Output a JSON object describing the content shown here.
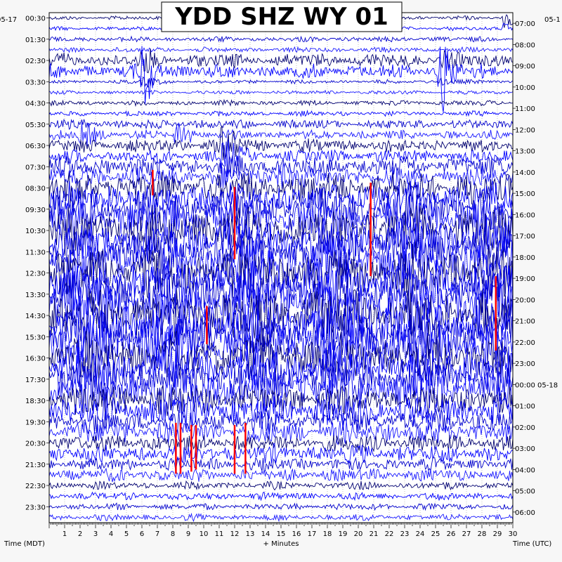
{
  "chart_data": {
    "type": "line",
    "title": "YDD SHZ WY 01",
    "xlabel": "+ Minutes",
    "ylabel_left": "Time (MDT)",
    "ylabel_right": "Time (UTC)",
    "xlim": [
      0,
      30
    ],
    "x_ticks": [
      "1",
      "2",
      "3",
      "4",
      "5",
      "6",
      "7",
      "8",
      "9",
      "10",
      "11",
      "12",
      "13",
      "14",
      "15",
      "16",
      "17",
      "18",
      "19",
      "20",
      "21",
      "22",
      "23",
      "24",
      "25",
      "26",
      "27",
      "28",
      "29",
      "30"
    ],
    "left_date": "05-17",
    "right_date_start": "05-1",
    "right_date_next": "05-18",
    "left_times": [
      "00:30",
      "01:30",
      "02:30",
      "03:30",
      "04:30",
      "05:30",
      "06:30",
      "07:30",
      "08:30",
      "09:30",
      "10:30",
      "11:30",
      "12:30",
      "13:30",
      "14:30",
      "15:30",
      "16:30",
      "17:30",
      "18:30",
      "19:30",
      "20:30",
      "21:30",
      "22:30",
      "23:30"
    ],
    "right_times": [
      "07:00",
      "08:00",
      "09:00",
      "10:00",
      "11:00",
      "12:00",
      "13:00",
      "14:00",
      "15:00",
      "16:00",
      "17:00",
      "18:00",
      "19:00",
      "20:00",
      "21:00",
      "22:00",
      "23:00",
      "00:00",
      "01:00",
      "02:00",
      "03:00",
      "04:00",
      "05:00",
      "06:00"
    ],
    "rows_per_hour": 2,
    "trace_colors": [
      "#000070",
      "#0000ff",
      "#0000cc",
      "#1a1aff"
    ],
    "clip_color": "#ff0000",
    "trace_amplitude_by_hour": [
      0.15,
      0.2,
      0.55,
      0.15,
      0.2,
      0.35,
      0.5,
      0.8,
      1.3,
      1.6,
      1.8,
      1.9,
      2.0,
      2.1,
      2.1,
      2.0,
      1.9,
      1.7,
      1.2,
      0.9,
      0.7,
      0.5,
      0.3,
      0.25
    ],
    "clipped_segments": [
      {
        "minute": 6.7,
        "from_hour": 7.4,
        "to_hour": 8.6
      },
      {
        "minute": 12.0,
        "from_hour": 8.2,
        "to_hour": 11.6
      },
      {
        "minute": 20.8,
        "from_hour": 8.0,
        "to_hour": 12.4
      },
      {
        "minute": 10.2,
        "from_hour": 13.8,
        "to_hour": 15.6
      },
      {
        "minute": 28.9,
        "from_hour": 12.4,
        "to_hour": 15.9
      },
      {
        "minute": 8.2,
        "from_hour": 19.3,
        "to_hour": 21.7
      },
      {
        "minute": 8.5,
        "from_hour": 19.3,
        "to_hour": 21.7
      },
      {
        "minute": 9.2,
        "from_hour": 19.4,
        "to_hour": 21.6
      },
      {
        "minute": 9.5,
        "from_hour": 19.4,
        "to_hour": 21.5
      },
      {
        "minute": 12.0,
        "from_hour": 19.4,
        "to_hour": 21.7
      },
      {
        "minute": 12.7,
        "from_hour": 19.3,
        "to_hour": 21.7
      }
    ],
    "events": [
      {
        "minute": 6.3,
        "hour": 2.5,
        "strength": 3.5
      },
      {
        "minute": 25.5,
        "hour": 2.5,
        "strength": 3.5
      },
      {
        "minute": 11.5,
        "hour": 6.2,
        "strength": 4.0
      },
      {
        "minute": 15.0,
        "hour": 7.4,
        "strength": 3.5
      },
      {
        "minute": 2.3,
        "hour": 5.5,
        "strength": 2.0
      },
      {
        "minute": 8.5,
        "hour": 5.5,
        "strength": 2.0
      },
      {
        "minute": 29.6,
        "hour": 0.2,
        "strength": 2.0
      }
    ]
  }
}
